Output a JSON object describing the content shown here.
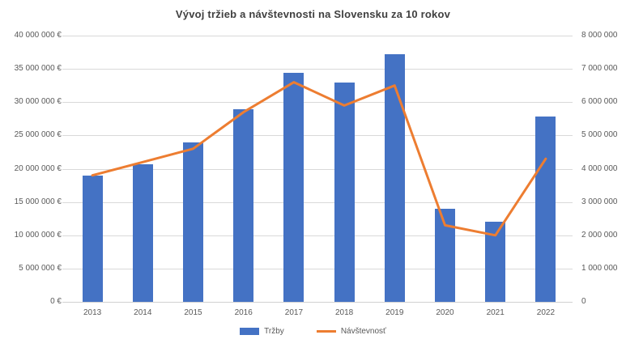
{
  "title": "Vývoj tržieb a návštevnosti na Slovensku za 10 rokov",
  "colors": {
    "bar": "#4472C4",
    "line": "#ED7D31",
    "grid": "#D9D9D9",
    "axis_text": "#595959",
    "title_text": "#404040"
  },
  "legend": [
    "Tržby",
    "Návštevnosť"
  ],
  "chart_data": {
    "type": "bar",
    "subtype": "combo-bar-line-dual-axis",
    "title": "Vývoj tržieb a návštevnosti na Slovensku za 10 rokov",
    "categories": [
      "2013",
      "2014",
      "2015",
      "2016",
      "2017",
      "2018",
      "2019",
      "2020",
      "2021",
      "2022"
    ],
    "series": [
      {
        "name": "Tržby",
        "type": "bar",
        "axis": "left",
        "color": "#4472C4",
        "values": [
          19000000,
          20700000,
          23900000,
          28900000,
          34400000,
          33000000,
          37200000,
          14000000,
          12000000,
          27900000
        ]
      },
      {
        "name": "Návštevnosť",
        "type": "line",
        "axis": "right",
        "color": "#ED7D31",
        "values": [
          3800000,
          4200000,
          4600000,
          5700000,
          6600000,
          5900000,
          6500000,
          2300000,
          2000000,
          4300000
        ]
      }
    ],
    "left_axis": {
      "min": 0,
      "max": 40000000,
      "step": 5000000,
      "suffix": " €"
    },
    "right_axis": {
      "min": 0,
      "max": 8000000,
      "step": 1000000,
      "suffix": ""
    },
    "xlabel": "",
    "ylabel_left": "",
    "ylabel_right": "",
    "grid": true,
    "legend_position": "bottom-center"
  }
}
